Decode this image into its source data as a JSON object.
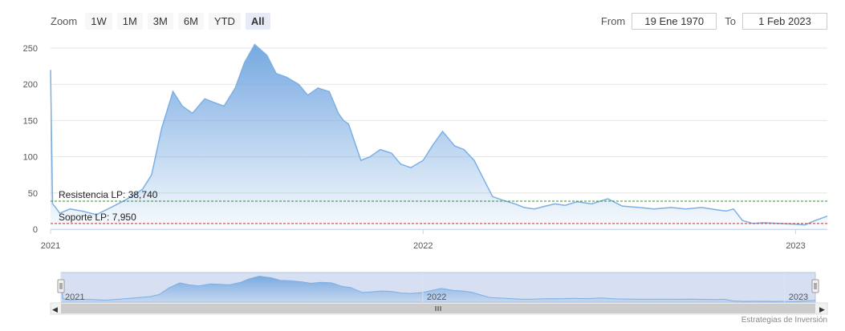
{
  "zoom": {
    "label": "Zoom",
    "buttons": [
      {
        "label": "1W",
        "active": false
      },
      {
        "label": "1M",
        "active": false
      },
      {
        "label": "3M",
        "active": false
      },
      {
        "label": "6M",
        "active": false
      },
      {
        "label": "YTD",
        "active": false
      },
      {
        "label": "All",
        "active": true
      }
    ]
  },
  "range": {
    "from_label": "From",
    "from_value": "19 Ene 1970",
    "to_label": "To",
    "to_value": "1 Feb 2023"
  },
  "credit": "Estrategias de Inversión",
  "colors": {
    "line": "#7cb0e4",
    "area_top": "#6fa4df",
    "resistance": "#2e8b2e",
    "support": "#c0392b",
    "navigator_fill": "#c5d3ec"
  },
  "chart_data": {
    "type": "area",
    "x_ticks": [
      "2021",
      "2022",
      "2023"
    ],
    "y_ticks": [
      0,
      50,
      100,
      150,
      200,
      250
    ],
    "ylim": [
      0,
      260
    ],
    "xlim": [
      "2021-01-01",
      "2023-02-01"
    ],
    "grid": true,
    "series": [
      {
        "x": [
          "2021-01-01",
          "2021-01-03",
          "2021-01-06",
          "2021-01-10",
          "2021-01-20",
          "2021-02-01",
          "2021-02-15",
          "2021-03-01",
          "2021-03-15",
          "2021-04-01",
          "2021-04-10",
          "2021-04-20",
          "2021-05-01",
          "2021-05-10",
          "2021-05-20",
          "2021-06-01",
          "2021-06-10",
          "2021-06-20",
          "2021-07-01",
          "2021-07-10",
          "2021-07-20",
          "2021-08-01",
          "2021-08-10",
          "2021-08-20",
          "2021-09-01",
          "2021-09-10",
          "2021-09-20",
          "2021-10-01",
          "2021-10-10",
          "2021-10-15",
          "2021-10-20",
          "2021-11-01",
          "2021-11-10",
          "2021-11-20",
          "2021-12-01",
          "2021-12-10",
          "2021-12-20",
          "2022-01-01",
          "2022-01-10",
          "2022-01-20",
          "2022-02-01",
          "2022-02-10",
          "2022-02-20",
          "2022-03-01",
          "2022-03-10",
          "2022-03-20",
          "2022-04-01",
          "2022-04-10",
          "2022-04-20",
          "2022-05-01",
          "2022-05-10",
          "2022-05-20",
          "2022-06-01",
          "2022-06-15",
          "2022-07-01",
          "2022-07-15",
          "2022-08-01",
          "2022-08-15",
          "2022-09-01",
          "2022-09-15",
          "2022-10-01",
          "2022-10-15",
          "2022-10-25",
          "2022-11-01",
          "2022-11-10",
          "2022-11-20",
          "2022-12-01",
          "2022-12-15",
          "2023-01-01",
          "2023-01-10",
          "2023-01-20",
          "2023-02-01"
        ],
        "values": [
          220,
          35,
          30,
          22,
          28,
          25,
          20,
          30,
          40,
          55,
          75,
          140,
          190,
          170,
          160,
          180,
          175,
          170,
          195,
          230,
          255,
          240,
          215,
          210,
          200,
          185,
          195,
          190,
          160,
          150,
          145,
          95,
          100,
          110,
          105,
          90,
          85,
          95,
          115,
          135,
          115,
          110,
          95,
          70,
          45,
          40,
          35,
          30,
          28,
          32,
          35,
          33,
          38,
          35,
          42,
          32,
          30,
          28,
          30,
          28,
          30,
          27,
          25,
          28,
          12,
          8,
          9,
          8,
          7,
          6,
          12,
          18
        ]
      }
    ],
    "annotations": [
      {
        "label": "Resistencia LP: 38,740",
        "value": 38.74
      },
      {
        "label": "Soporte LP: 7,950",
        "value": 7.95
      }
    ],
    "navigator_ticks": [
      "2021",
      "2022",
      "2023"
    ]
  }
}
